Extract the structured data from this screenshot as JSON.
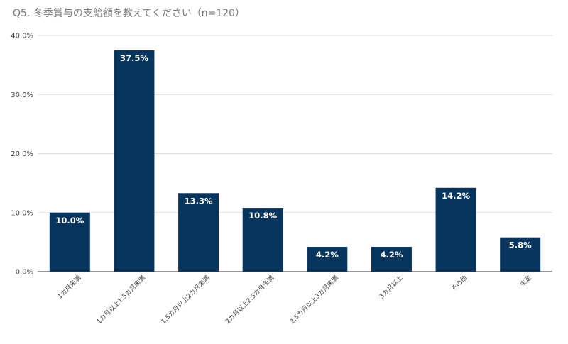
{
  "chart_data": {
    "type": "bar",
    "title": "Q5. 冬季賞与の支給額を教えてください（n=120）",
    "xlabel": "",
    "ylabel": "",
    "categories": [
      "1カ月未満",
      "1カ月以上1.5カ月未満",
      "1.5カ月以上2カ月未満",
      "2カ月以上2.5カ月未満",
      "2.5カ月以上3カ月未満",
      "3カ月以上",
      "その他",
      "未定"
    ],
    "values": [
      10.0,
      37.5,
      13.3,
      10.8,
      4.2,
      4.2,
      14.2,
      5.8
    ],
    "data_labels": [
      "10.0%",
      "37.5%",
      "13.3%",
      "10.8%",
      "4.2%",
      "4.2%",
      "14.2%",
      "5.8%"
    ],
    "ylim": [
      0,
      40
    ],
    "yticks": [
      0,
      10,
      20,
      30,
      40
    ],
    "ytick_labels": [
      "0.0%",
      "10.0%",
      "20.0%",
      "30.0%",
      "40.0%"
    ],
    "grid": true,
    "legend": "none",
    "colors": {
      "bar": "#08355e",
      "grid": "#dddddd",
      "axis": "#333333"
    }
  }
}
